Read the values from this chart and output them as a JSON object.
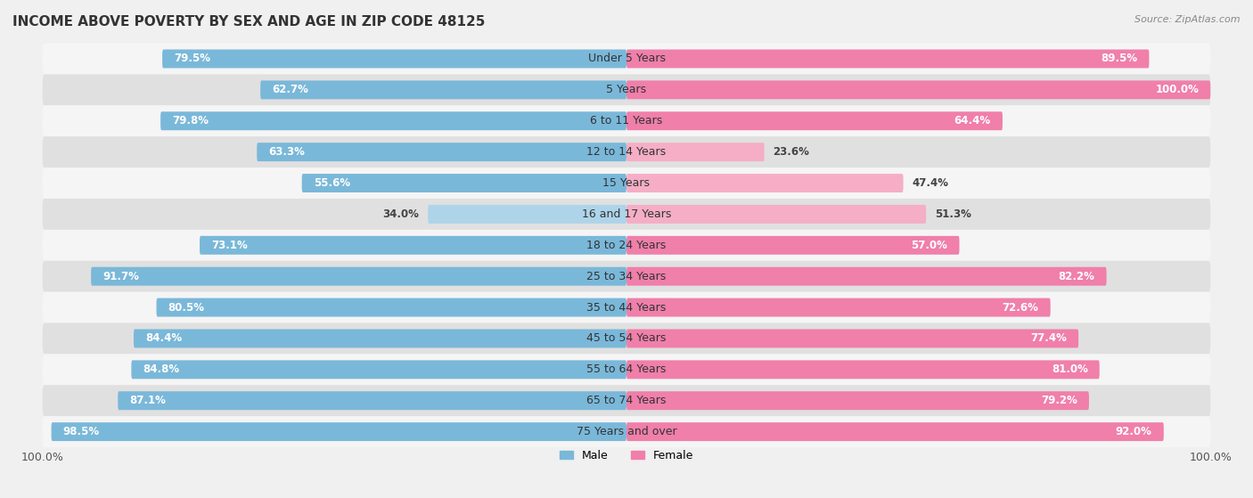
{
  "title": "INCOME ABOVE POVERTY BY SEX AND AGE IN ZIP CODE 48125",
  "source": "Source: ZipAtlas.com",
  "categories": [
    "Under 5 Years",
    "5 Years",
    "6 to 11 Years",
    "12 to 14 Years",
    "15 Years",
    "16 and 17 Years",
    "18 to 24 Years",
    "25 to 34 Years",
    "35 to 44 Years",
    "45 to 54 Years",
    "55 to 64 Years",
    "65 to 74 Years",
    "75 Years and over"
  ],
  "male_values": [
    79.5,
    62.7,
    79.8,
    63.3,
    55.6,
    34.0,
    73.1,
    91.7,
    80.5,
    84.4,
    84.8,
    87.1,
    98.5
  ],
  "female_values": [
    89.5,
    100.0,
    64.4,
    23.6,
    47.4,
    51.3,
    57.0,
    82.2,
    72.6,
    77.4,
    81.0,
    79.2,
    92.0
  ],
  "male_color": "#7ab8d9",
  "male_color_light": "#aed4ea",
  "female_color": "#f07faa",
  "female_color_light": "#f5aec5",
  "bg_color": "#f0f0f0",
  "row_color_dark": "#e0e0e0",
  "row_color_light": "#f5f5f5",
  "max_val": 100.0,
  "title_fontsize": 11,
  "label_fontsize": 9,
  "value_fontsize": 8.5,
  "axis_label_fontsize": 9,
  "threshold_white": 55.0
}
